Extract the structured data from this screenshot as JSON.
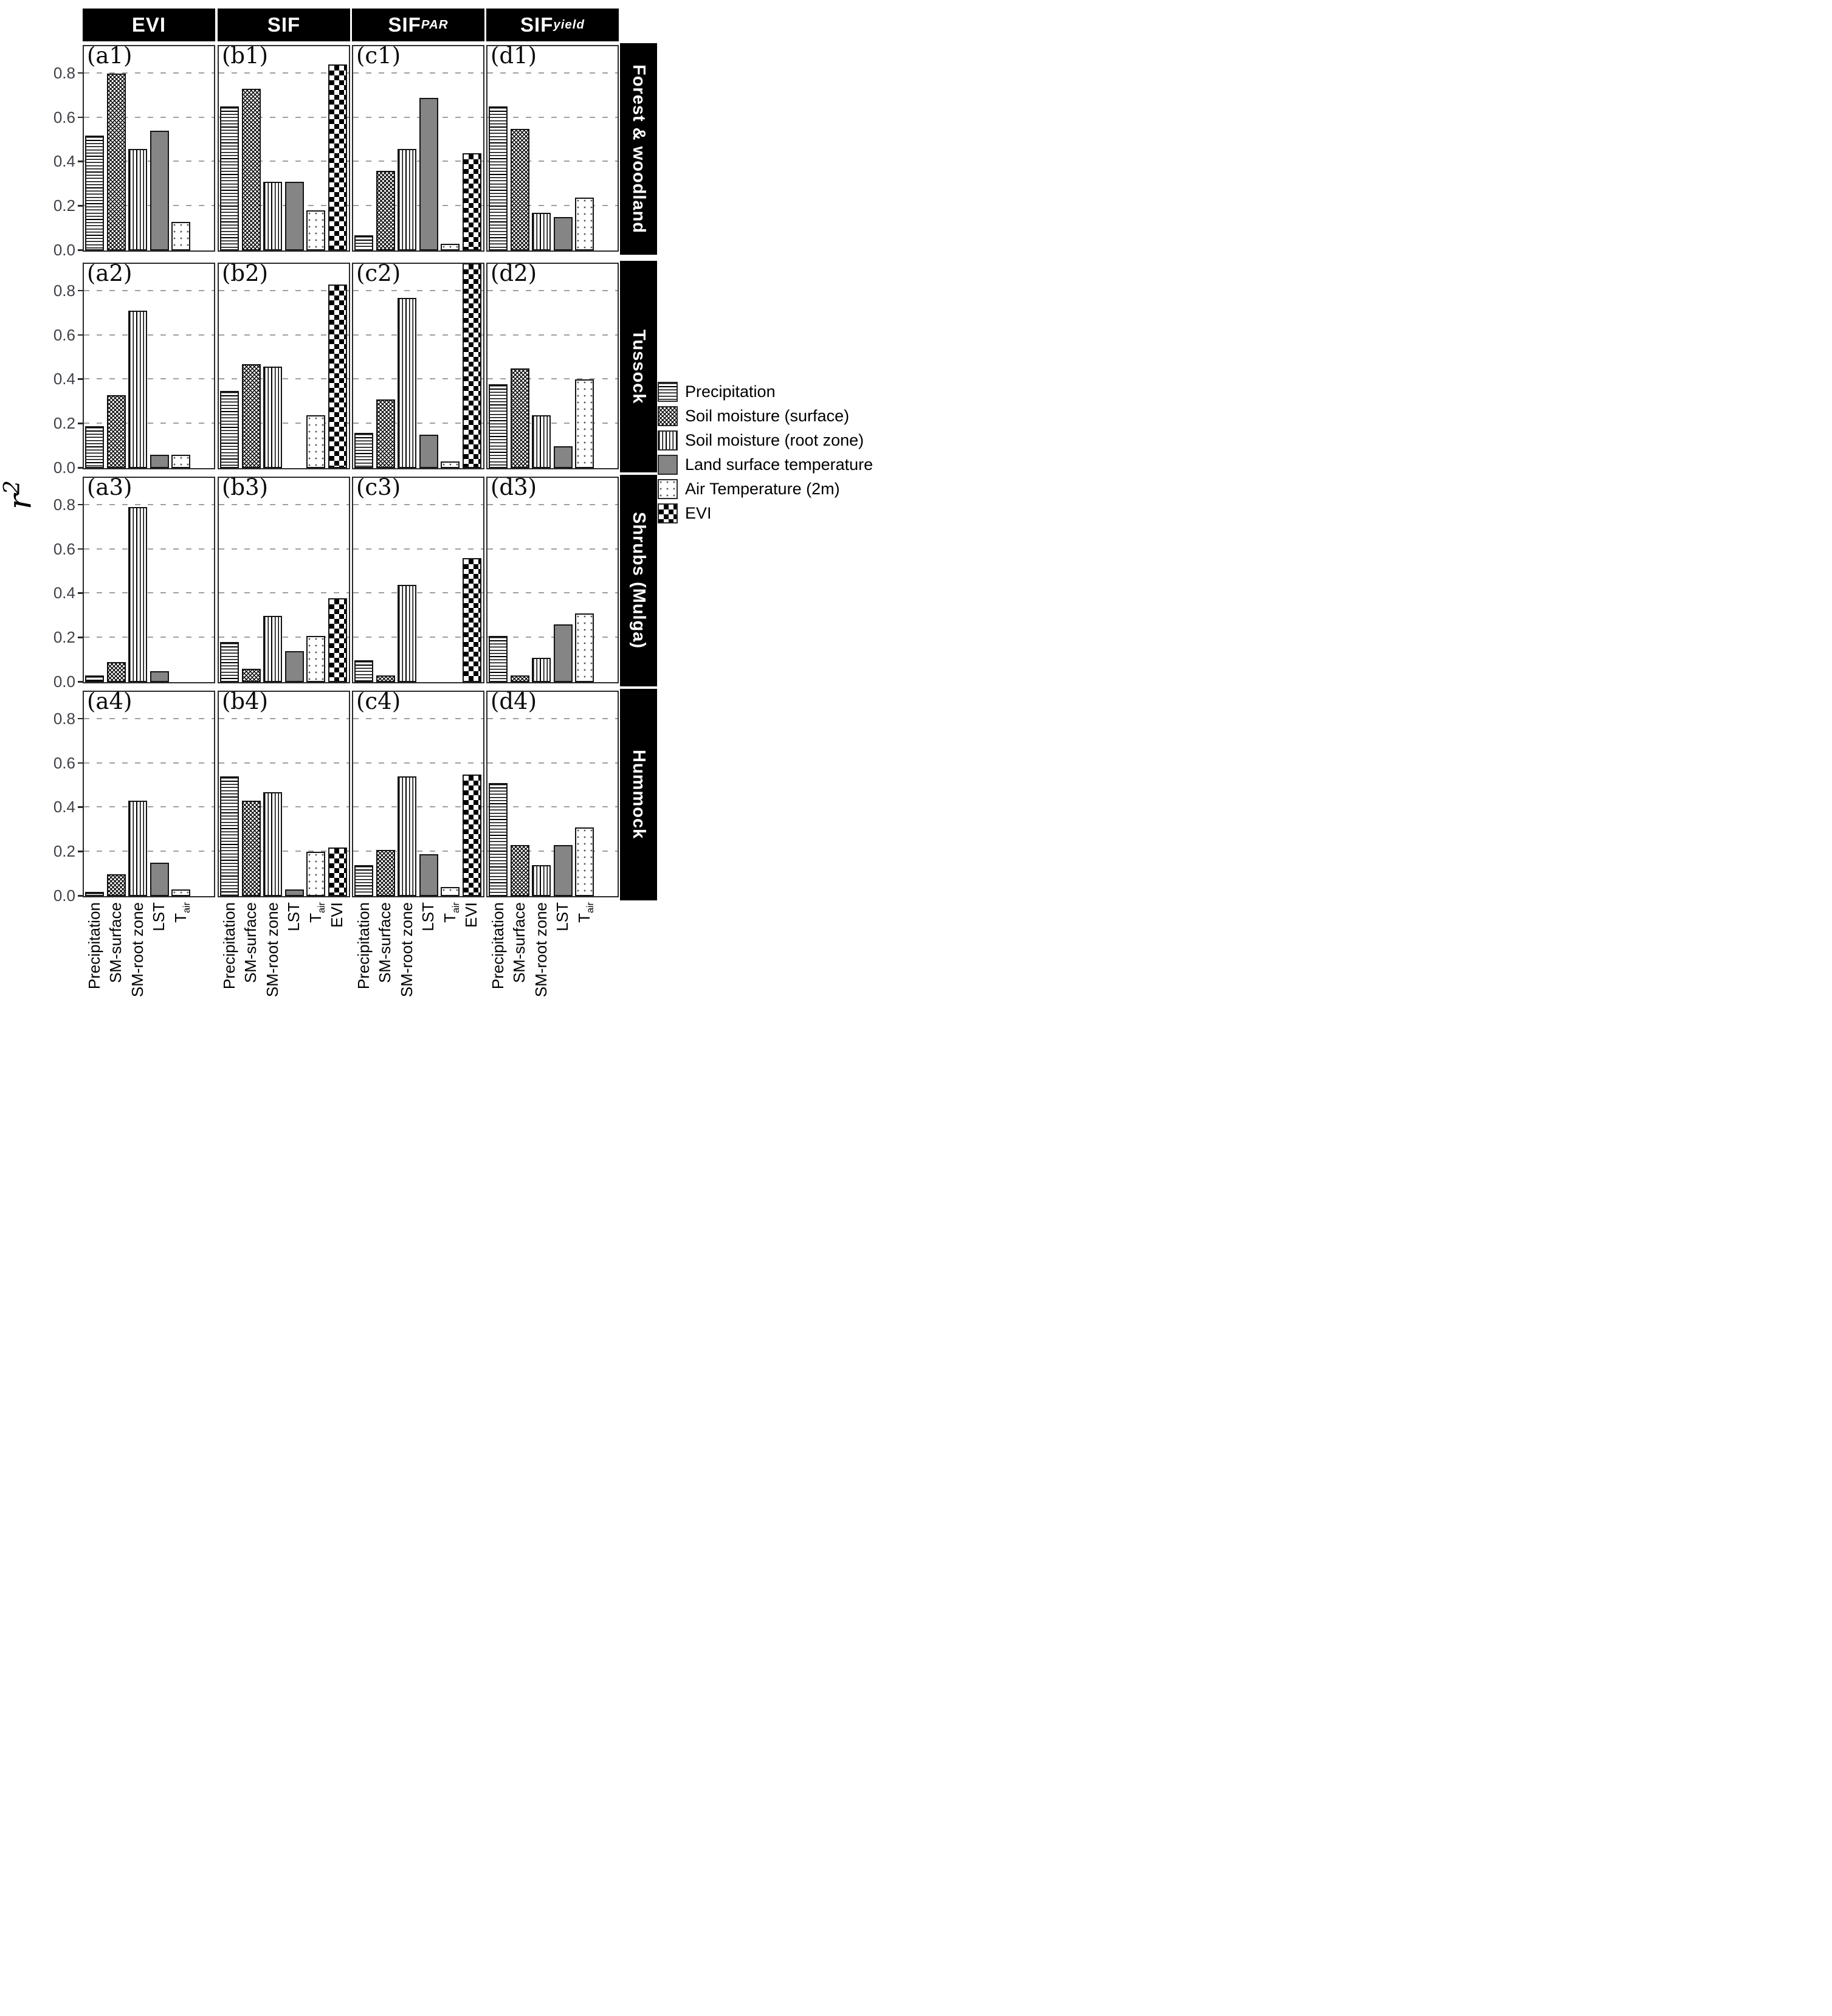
{
  "figure": {
    "y_axis": {
      "label_main": "r",
      "label_sup": "2",
      "ticks": [
        "0.0",
        "0.2",
        "0.4",
        "0.6",
        "0.8"
      ],
      "tick_values": [
        0,
        0.2,
        0.4,
        0.6,
        0.8
      ],
      "visible_max": 0.92
    },
    "column_headers": [
      {
        "main": "EVI",
        "sub": ""
      },
      {
        "main": "SIF",
        "sub": ""
      },
      {
        "main": "SIF",
        "sub": "PAR"
      },
      {
        "main": "SIF",
        "sub": "yield"
      }
    ],
    "row_labels": [
      "Forest & woodland",
      "Tussock",
      "Shrubs (Mulga)",
      "Hummock"
    ],
    "x_tick_labels": [
      {
        "main": "Precipitation",
        "sub": ""
      },
      {
        "main": "SM-surface",
        "sub": ""
      },
      {
        "main": "SM-root zone",
        "sub": ""
      },
      {
        "main": "LST",
        "sub": ""
      },
      {
        "main": "T",
        "sub": "air"
      },
      {
        "main": "EVI",
        "sub": ""
      }
    ],
    "legend": {
      "items": [
        {
          "label": "Precipitation",
          "pattern": "hlines"
        },
        {
          "label": "Soil moisture (surface)",
          "pattern": "cross"
        },
        {
          "label": "Soil moisture (root zone)",
          "pattern": "vlines"
        },
        {
          "label": "Land surface temperature",
          "pattern": "solid"
        },
        {
          "label": "Air Temperature (2m)",
          "pattern": "dots"
        },
        {
          "label": "EVI",
          "pattern": "diamonds"
        }
      ]
    },
    "colors": {
      "header_bg": "#000000",
      "header_text": "#ffffff",
      "lst_gray": "#858585",
      "gridline": "#9f9f9f",
      "tick_text": "#3f4147",
      "bar_outline": "#141414"
    }
  },
  "chart_data": {
    "type": "bar",
    "title": "",
    "ylabel": "r2",
    "xlabel": "",
    "ylim": [
      0,
      0.92
    ],
    "gridlines": [
      0.2,
      0.4,
      0.6,
      0.8
    ],
    "grid_style": "dashed",
    "legend_position": "right-middle",
    "drivers": [
      "Precipitation",
      "SM-surface",
      "SM-root zone",
      "LST",
      "Tair",
      "EVI"
    ],
    "driver_patterns": [
      "hlines",
      "cross",
      "vlines",
      "solid",
      "dots",
      "diamonds"
    ],
    "panels": [
      {
        "id": "(a1)",
        "column": "EVI",
        "row": "Forest & woodland",
        "values": [
          0.52,
          0.8,
          0.46,
          0.54,
          0.13
        ]
      },
      {
        "id": "(b1)",
        "column": "SIF",
        "row": "Forest & woodland",
        "values": [
          0.65,
          0.73,
          0.31,
          0.31,
          0.18,
          0.84
        ]
      },
      {
        "id": "(c1)",
        "column": "SIFPAR",
        "row": "Forest & woodland",
        "values": [
          0.07,
          0.36,
          0.46,
          0.69,
          0.03,
          0.44
        ]
      },
      {
        "id": "(d1)",
        "column": "SIFyield",
        "row": "Forest & woodland",
        "values": [
          0.65,
          0.55,
          0.17,
          0.15,
          0.24
        ]
      },
      {
        "id": "(a2)",
        "column": "EVI",
        "row": "Tussock",
        "values": [
          0.19,
          0.33,
          0.71,
          0.06,
          0.06
        ]
      },
      {
        "id": "(b2)",
        "column": "SIF",
        "row": "Tussock",
        "values": [
          0.35,
          0.47,
          0.46,
          0.0,
          0.24,
          0.83
        ]
      },
      {
        "id": "(c2)",
        "column": "SIFPAR",
        "row": "Tussock",
        "values": [
          0.16,
          0.31,
          0.77,
          0.15,
          0.03,
          0.95
        ],
        "note": "EVI bar clipped at panel top"
      },
      {
        "id": "(d2)",
        "column": "SIFyield",
        "row": "Tussock",
        "values": [
          0.38,
          0.45,
          0.24,
          0.1,
          0.4
        ]
      },
      {
        "id": "(a3)",
        "column": "EVI",
        "row": "Shrubs (Mulga)",
        "values": [
          0.03,
          0.09,
          0.79,
          0.05,
          0.0
        ]
      },
      {
        "id": "(b3)",
        "column": "SIF",
        "row": "Shrubs (Mulga)",
        "values": [
          0.18,
          0.06,
          0.3,
          0.14,
          0.21,
          0.38
        ]
      },
      {
        "id": "(c3)",
        "column": "SIFPAR",
        "row": "Shrubs (Mulga)",
        "values": [
          0.1,
          0.03,
          0.44,
          0.0,
          0.0,
          0.56
        ]
      },
      {
        "id": "(d3)",
        "column": "SIFyield",
        "row": "Shrubs (Mulga)",
        "values": [
          0.21,
          0.03,
          0.11,
          0.26,
          0.31
        ]
      },
      {
        "id": "(a4)",
        "column": "EVI",
        "row": "Hummock",
        "values": [
          0.02,
          0.1,
          0.43,
          0.15,
          0.03
        ]
      },
      {
        "id": "(b4)",
        "column": "SIF",
        "row": "Hummock",
        "values": [
          0.54,
          0.43,
          0.47,
          0.03,
          0.2,
          0.22
        ]
      },
      {
        "id": "(c4)",
        "column": "SIFPAR",
        "row": "Hummock",
        "values": [
          0.14,
          0.21,
          0.54,
          0.19,
          0.04,
          0.55
        ]
      },
      {
        "id": "(d4)",
        "column": "SIFyield",
        "row": "Hummock",
        "values": [
          0.51,
          0.23,
          0.14,
          0.23,
          0.31
        ]
      }
    ]
  }
}
